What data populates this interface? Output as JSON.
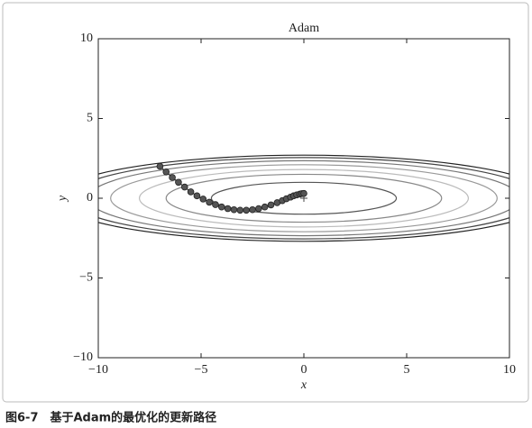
{
  "chart_data": {
    "type": "scatter",
    "title": "Adam",
    "x_label": "x",
    "y_label": "y",
    "caption": "图6-7　基于Adam的最优化的更新路径",
    "xlim": [
      -10,
      10
    ],
    "ylim": [
      -10,
      10
    ],
    "xticks": [
      {
        "value": -10,
        "label": "−10"
      },
      {
        "value": -5,
        "label": "−5"
      },
      0,
      5,
      10
    ],
    "yticks": [
      {
        "value": -10,
        "label": "−10"
      },
      {
        "value": -5,
        "label": "−5"
      },
      0,
      5,
      10
    ],
    "contours": [
      {
        "rx": 4.5,
        "ry": 1.0,
        "color": "#555555"
      },
      {
        "rx": 6.7,
        "ry": 1.5,
        "color": "#888888"
      },
      {
        "rx": 8.0,
        "ry": 1.8,
        "color": "#bbbbbb"
      },
      {
        "rx": 9.4,
        "ry": 2.1,
        "color": "#999999"
      },
      {
        "rx": 10.5,
        "ry": 2.35,
        "color": "#777777"
      },
      {
        "rx": 11.4,
        "ry": 2.55,
        "color": "#444444"
      },
      {
        "rx": 12.1,
        "ry": 2.7,
        "color": "#222222"
      }
    ],
    "minimum": {
      "x": 0,
      "y": 0
    },
    "series": [
      {
        "color": "#555555",
        "x": [
          -7.0,
          -6.7,
          -6.4,
          -6.1,
          -5.8,
          -5.5,
          -5.2,
          -4.9,
          -4.6,
          -4.3,
          -4.0,
          -3.7,
          -3.4,
          -3.1,
          -2.8,
          -2.5,
          -2.2,
          -1.9,
          -1.6,
          -1.3,
          -1.05,
          -0.85,
          -0.65,
          -0.5,
          -0.35,
          -0.2,
          -0.1,
          0.0
        ],
        "values": [
          2.0,
          1.65,
          1.3,
          1.0,
          0.7,
          0.4,
          0.15,
          -0.05,
          -0.25,
          -0.4,
          -0.55,
          -0.65,
          -0.72,
          -0.75,
          -0.75,
          -0.72,
          -0.65,
          -0.55,
          -0.42,
          -0.28,
          -0.15,
          -0.03,
          0.07,
          0.15,
          0.21,
          0.26,
          0.29,
          0.3
        ]
      }
    ]
  }
}
